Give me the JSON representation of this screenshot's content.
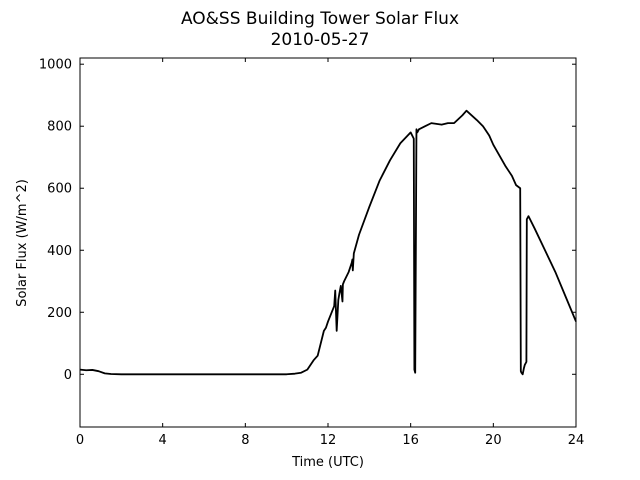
{
  "chart_data": {
    "type": "line",
    "title": "AO&SS Building Tower Solar Flux",
    "subtitle": "2010-05-27",
    "xlabel": "Time (UTC)",
    "ylabel": "Solar Flux (W/m^2)",
    "xlim": [
      0,
      24
    ],
    "ylim": [
      -170,
      1020
    ],
    "xticks": [
      0,
      4,
      8,
      12,
      16,
      20,
      24
    ],
    "yticks": [
      0,
      200,
      400,
      600,
      800,
      1000
    ],
    "xtick_labels": [
      "0",
      "4",
      "8",
      "12",
      "16",
      "20",
      "24"
    ],
    "ytick_labels": [
      "0",
      "200",
      "400",
      "600",
      "800",
      "1000"
    ],
    "grid": false,
    "line_color": "#000000",
    "series": [
      {
        "x": [
          0.0,
          0.3,
          0.6,
          0.9,
          1.2,
          1.5,
          2.0,
          3.0,
          5.0,
          7.0,
          9.0,
          10.0,
          10.4,
          10.7,
          11.0,
          11.3,
          11.5,
          11.8,
          11.9,
          12.0,
          12.3,
          12.35,
          12.42,
          12.5,
          12.55,
          12.62,
          12.7,
          12.72,
          12.78,
          13.0,
          13.15,
          13.18,
          13.2,
          13.25,
          13.5,
          14.0,
          14.5,
          15.0,
          15.5,
          16.0,
          16.15,
          16.18,
          16.22,
          16.28,
          16.32,
          16.4,
          16.7,
          17.0,
          17.5,
          17.8,
          18.1,
          18.5,
          18.7,
          18.9,
          19.2,
          19.5,
          19.8,
          20.0,
          20.3,
          20.6,
          20.9,
          21.1,
          21.3,
          21.33,
          21.36,
          21.42,
          21.48,
          21.52,
          21.6,
          21.62,
          21.7,
          22.0,
          22.5,
          23.0,
          23.5,
          24.0
        ],
        "y": [
          15,
          13,
          14,
          10,
          3,
          1,
          0,
          0,
          0,
          0,
          0,
          0,
          2,
          5,
          15,
          45,
          60,
          140,
          150,
          170,
          220,
          270,
          140,
          240,
          260,
          285,
          235,
          290,
          300,
          330,
          360,
          370,
          335,
          390,
          450,
          540,
          625,
          690,
          745,
          780,
          760,
          15,
          5,
          790,
          780,
          790,
          800,
          810,
          805,
          810,
          810,
          835,
          850,
          838,
          820,
          800,
          770,
          740,
          705,
          670,
          640,
          610,
          600,
          10,
          5,
          0,
          20,
          30,
          40,
          500,
          510,
          470,
          400,
          330,
          250,
          170
        ]
      }
    ]
  }
}
